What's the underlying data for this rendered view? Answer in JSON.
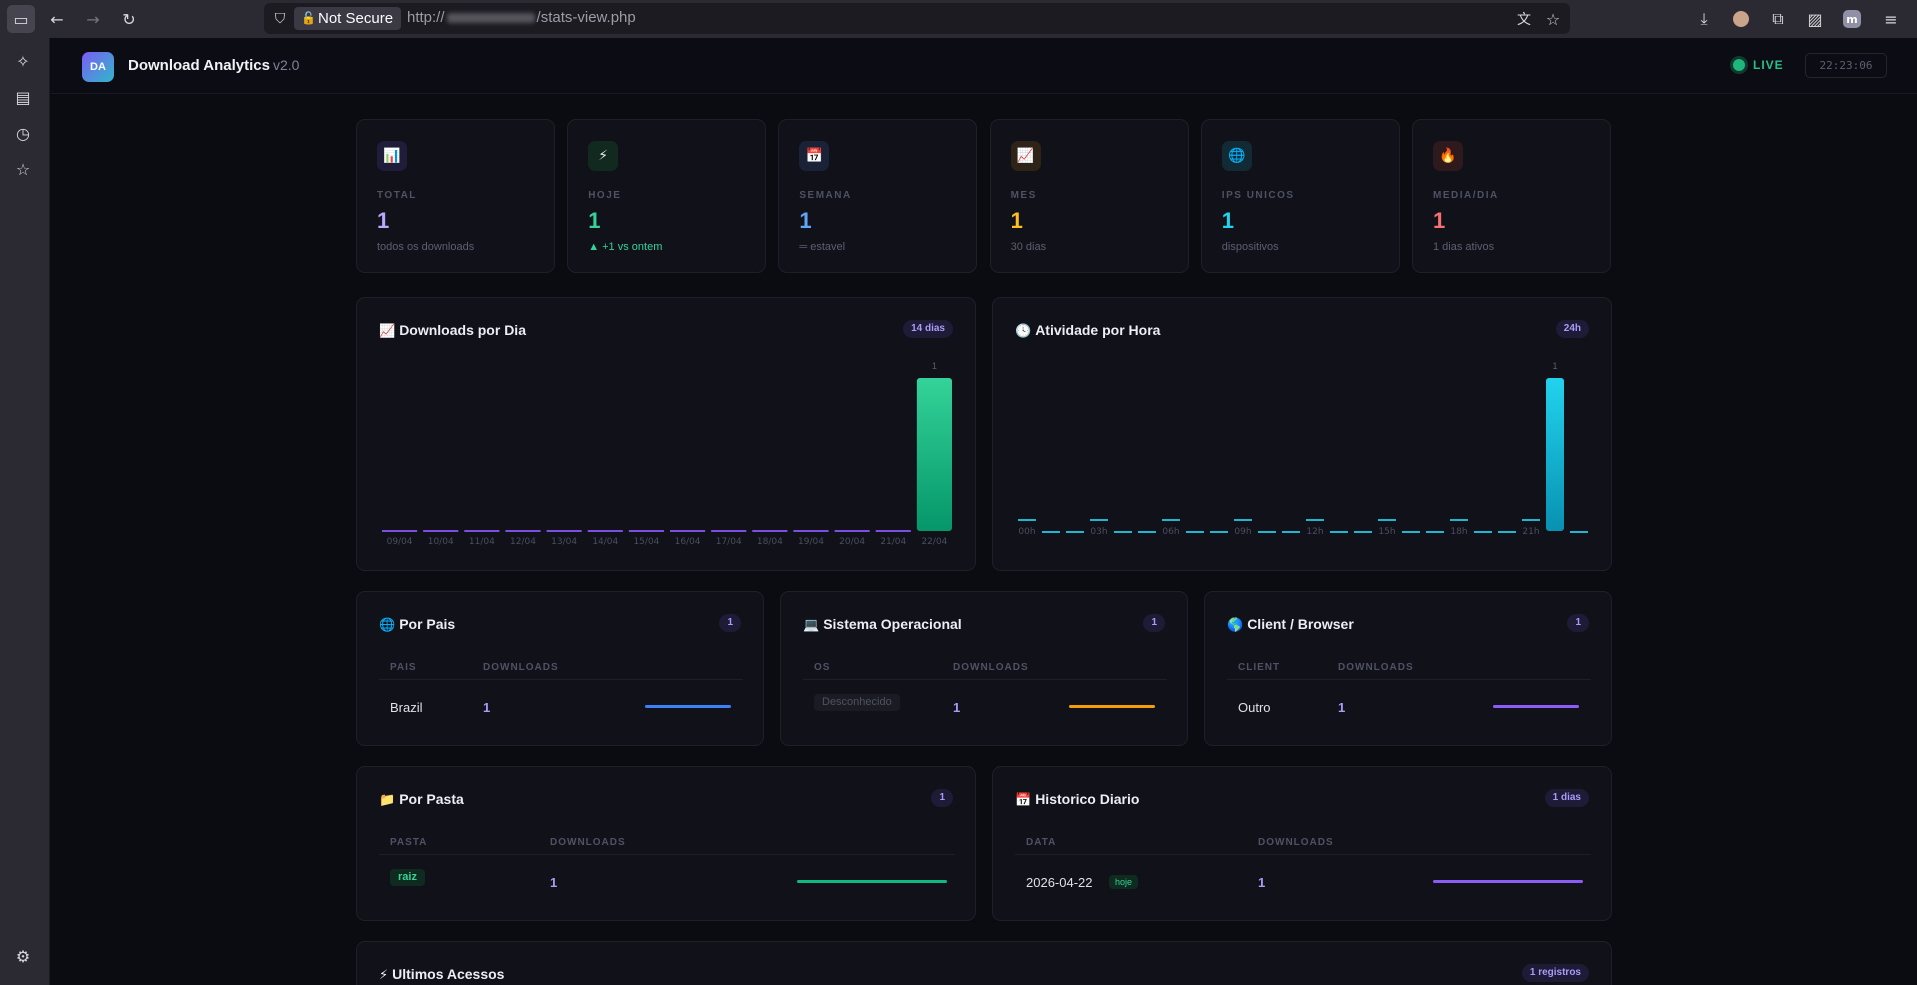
{
  "browser": {
    "not_secure_label": "Not Secure",
    "url_prefix": "http://",
    "url_path": "/stats-view.php"
  },
  "app": {
    "logo_text": "DA",
    "title": "Download Analytics",
    "version": "v2.0",
    "live_label": "LIVE",
    "clock": "22:23:06"
  },
  "stats": [
    {
      "icon": "bar-chart-icon",
      "glyph": "📊",
      "label": "TOTAL",
      "value": "1",
      "sub": "todos os downloads",
      "color": "#b9a8ff",
      "icon_bg": "#1f1d3a",
      "sub_color": "#5b5f70"
    },
    {
      "icon": "lightning-icon",
      "glyph": "⚡",
      "label": "HOJE",
      "value": "1",
      "sub": "▲ +1 vs ontem",
      "color": "#34d399",
      "icon_bg": "#12291f",
      "sub_color": "#34d399"
    },
    {
      "icon": "calendar-icon",
      "glyph": "📅",
      "label": "SEMANA",
      "value": "1",
      "sub": "═ estavel",
      "color": "#60a5fa",
      "icon_bg": "#1a2237",
      "sub_color": "#5b5f70"
    },
    {
      "icon": "trend-icon",
      "glyph": "📈",
      "label": "MES",
      "value": "1",
      "sub": "30 dias",
      "color": "#fbbf24",
      "icon_bg": "#2e2316",
      "sub_color": "#5b5f70"
    },
    {
      "icon": "globe-icon",
      "glyph": "🌐",
      "label": "IPS UNICOS",
      "value": "1",
      "sub": "dispositivos",
      "color": "#22d3ee",
      "icon_bg": "#122a33",
      "sub_color": "#5b5f70"
    },
    {
      "icon": "fire-icon",
      "glyph": "🔥",
      "label": "MEDIA/DIA",
      "value": "1",
      "sub": "1 dias ativos",
      "color": "#f87171",
      "icon_bg": "#2e1a1d",
      "sub_color": "#5b5f70"
    }
  ],
  "daily_chart": {
    "title_icon": "📈",
    "title": "Downloads por Dia",
    "badge": "14 dias",
    "chart_data": {
      "type": "bar",
      "categories": [
        "09/04",
        "10/04",
        "11/04",
        "12/04",
        "13/04",
        "14/04",
        "15/04",
        "16/04",
        "17/04",
        "18/04",
        "19/04",
        "20/04",
        "21/04",
        "22/04"
      ],
      "values": [
        0,
        0,
        0,
        0,
        0,
        0,
        0,
        0,
        0,
        0,
        0,
        0,
        0,
        1
      ],
      "data_labels": [
        "1"
      ],
      "ylim": [
        0,
        1
      ]
    }
  },
  "hourly_chart": {
    "title_icon": "🕓",
    "title": "Atividade por Hora",
    "badge": "24h",
    "chart_data": {
      "type": "bar",
      "categories": [
        "00h",
        "01h",
        "02h",
        "03h",
        "04h",
        "05h",
        "06h",
        "07h",
        "08h",
        "09h",
        "10h",
        "11h",
        "12h",
        "13h",
        "14h",
        "15h",
        "16h",
        "17h",
        "18h",
        "19h",
        "20h",
        "21h",
        "22h",
        "23h"
      ],
      "tick_labels": [
        "00h",
        "03h",
        "06h",
        "09h",
        "12h",
        "15h",
        "18h",
        "21h"
      ],
      "values": [
        0,
        0,
        0,
        0,
        0,
        0,
        0,
        0,
        0,
        0,
        0,
        0,
        0,
        0,
        0,
        0,
        0,
        0,
        0,
        0,
        0,
        0,
        1,
        0
      ],
      "data_labels": [
        "1"
      ],
      "ylim": [
        0,
        1
      ]
    }
  },
  "pais": {
    "title_icon": "🌐",
    "title": "Por Pais",
    "badge": "1",
    "col1": "PAIS",
    "col2": "DOWNLOADS",
    "row": {
      "name": "Brazil",
      "value": "1",
      "fraction": 1.0,
      "color": "#3b82f6"
    }
  },
  "os": {
    "title_icon": "💻",
    "title": "Sistema Operacional",
    "badge": "1",
    "col1": "OS",
    "col2": "DOWNLOADS",
    "row": {
      "name": "Desconhecido",
      "value": "1",
      "fraction": 1.0,
      "color": "#f59e0b"
    }
  },
  "client": {
    "title_icon": "🌎",
    "title": "Client / Browser",
    "badge": "1",
    "col1": "CLIENT",
    "col2": "DOWNLOADS",
    "row": {
      "name": "Outro",
      "value": "1",
      "fraction": 1.0,
      "color": "#8b5cf6"
    }
  },
  "pasta": {
    "title_icon": "📁",
    "title": "Por Pasta",
    "badge": "1",
    "col1": "PASTA",
    "col2": "DOWNLOADS",
    "row": {
      "name": "raiz",
      "value": "1",
      "fraction": 1.0,
      "color": "#10b981"
    }
  },
  "historico": {
    "title_icon": "📅",
    "title": "Historico Diario",
    "badge": "1 dias",
    "col1": "DATA",
    "col2": "DOWNLOADS",
    "row": {
      "name": "2026-04-22",
      "tag": "hoje",
      "value": "1",
      "fraction": 1.0,
      "color": "#8b5cf6"
    }
  },
  "acessos": {
    "title_icon": "⚡",
    "title": "Ultimos Acessos",
    "badge": "1 registros"
  }
}
